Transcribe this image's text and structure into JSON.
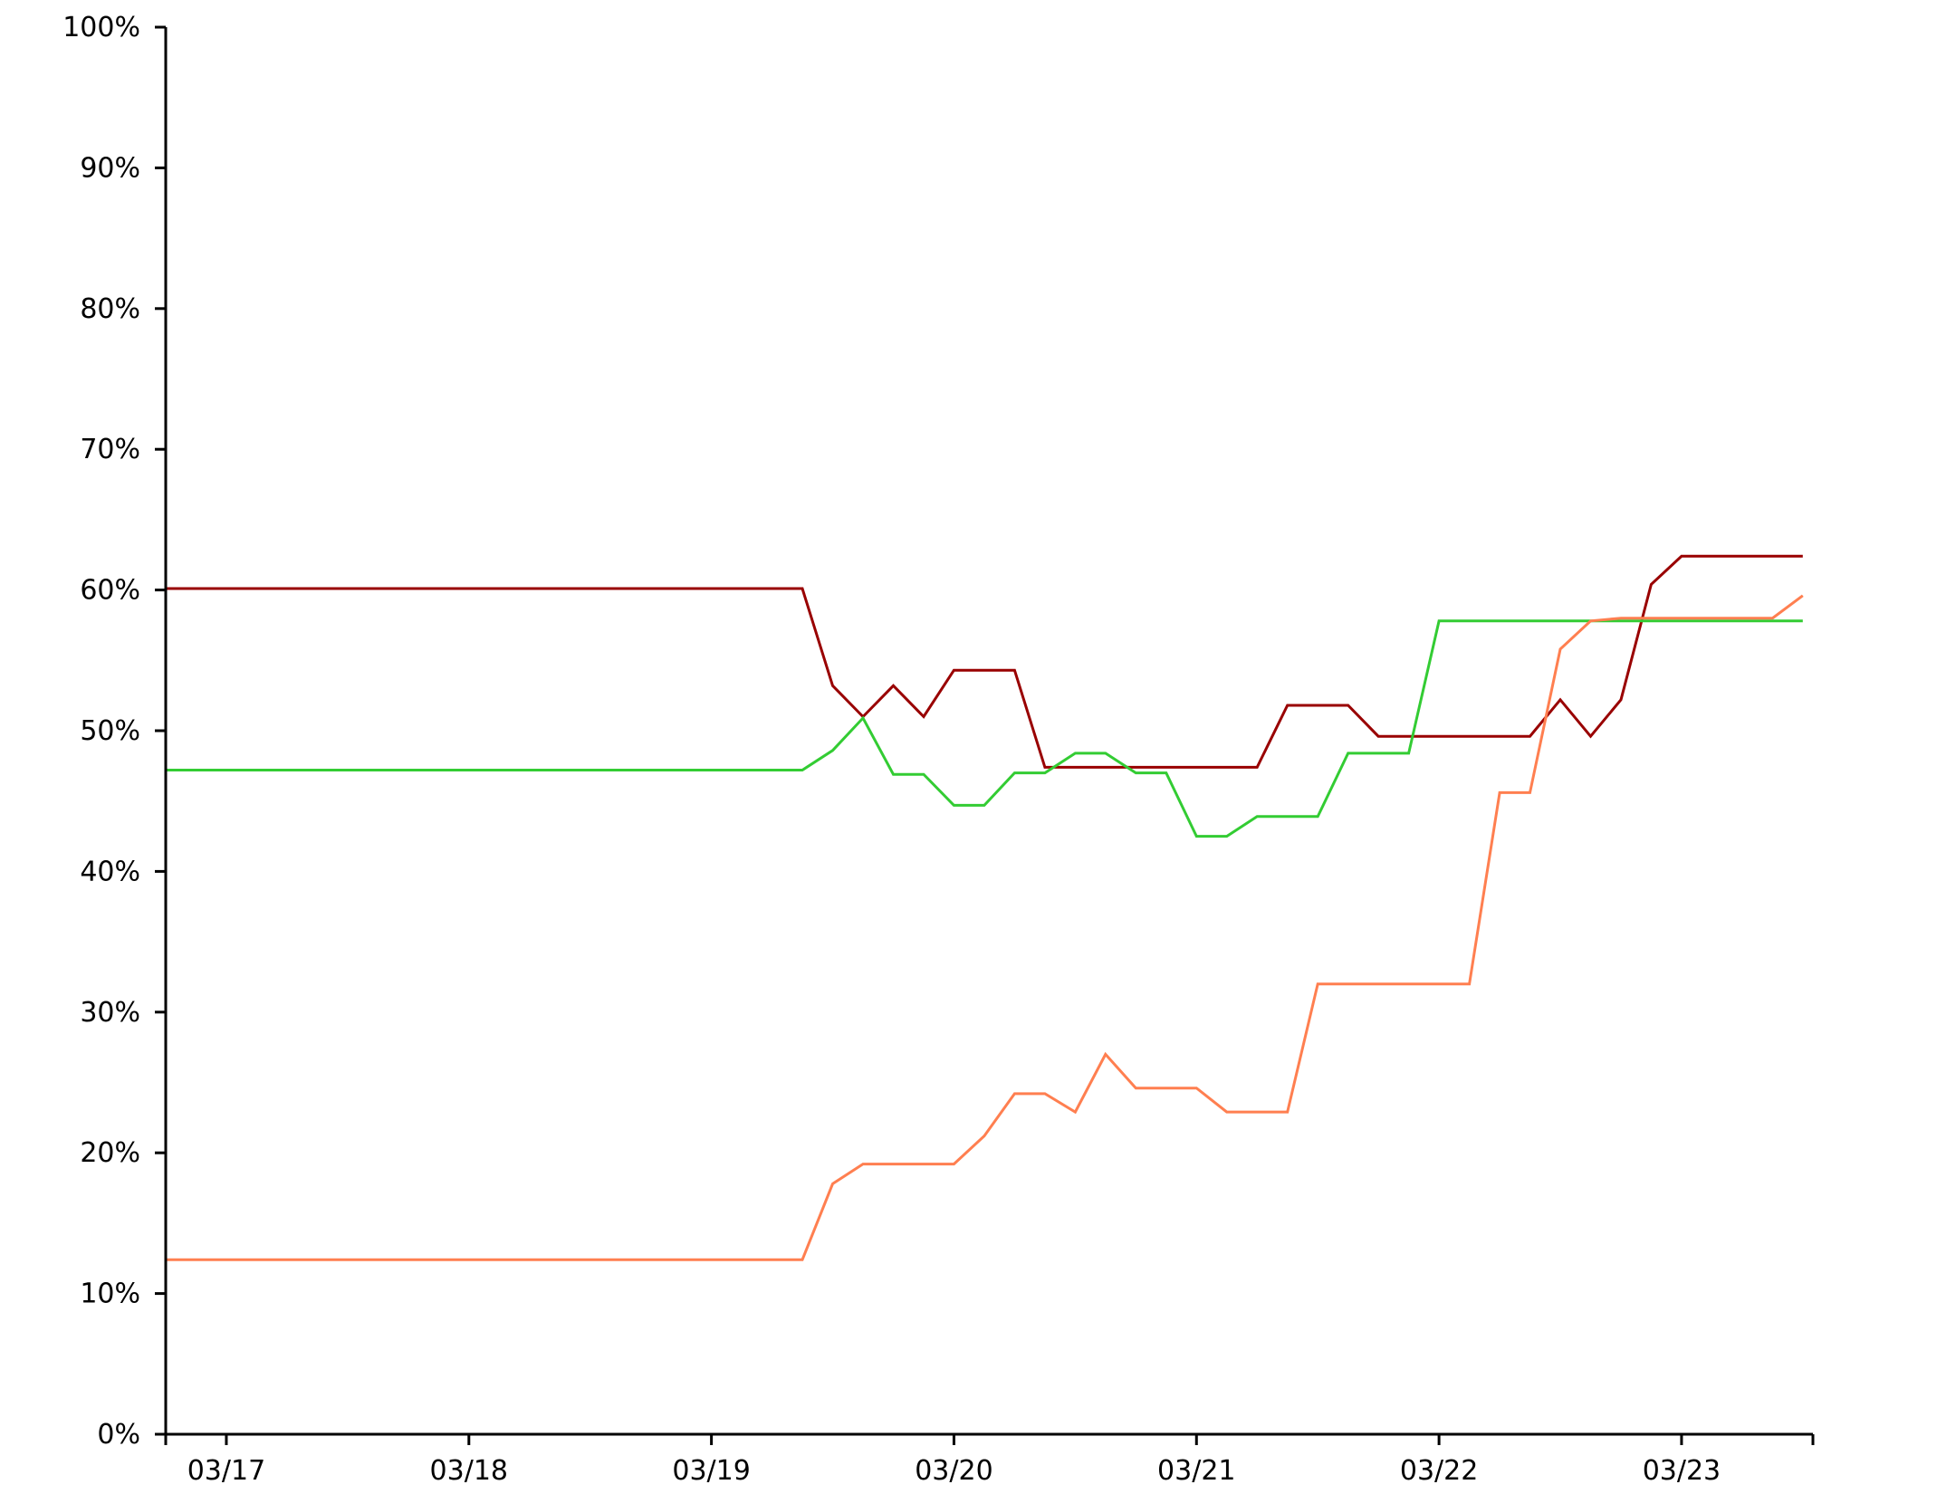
{
  "chart_data": {
    "type": "line",
    "title": "",
    "xlabel": "",
    "ylabel": "",
    "x_axis": {
      "type": "date",
      "domain": [
        "2020-03-16T18:00",
        "2020-03-23T13:00"
      ],
      "ticks": [
        {
          "date": "2020-03-17T00:00",
          "label": "03/17"
        },
        {
          "date": "2020-03-18T00:00",
          "label": "03/18"
        },
        {
          "date": "2020-03-19T00:00",
          "label": "03/19"
        },
        {
          "date": "2020-03-20T00:00",
          "label": "03/20"
        },
        {
          "date": "2020-03-21T00:00",
          "label": "03/21"
        },
        {
          "date": "2020-03-22T00:00",
          "label": "03/22"
        },
        {
          "date": "2020-03-23T00:00",
          "label": "03/23"
        }
      ]
    },
    "y_axis": {
      "ylim": [
        0,
        100
      ],
      "ticks": [
        0,
        10,
        20,
        30,
        40,
        50,
        60,
        70,
        80,
        90,
        100
      ],
      "tick_labels": [
        "0%",
        "10%",
        "20%",
        "30%",
        "40%",
        "50%",
        "60%",
        "70%",
        "80%",
        "90%",
        "100%"
      ]
    },
    "grid": false,
    "legend": "none",
    "series": [
      {
        "color": "#990000",
        "points": [
          [
            "2020-03-16T18:00",
            60.1
          ],
          [
            "2020-03-19T09:00",
            60.1
          ],
          [
            "2020-03-19T12:00",
            53.2
          ],
          [
            "2020-03-19T15:00",
            51.0
          ],
          [
            "2020-03-19T18:00",
            53.2
          ],
          [
            "2020-03-19T21:00",
            51.0
          ],
          [
            "2020-03-20T00:00",
            54.3
          ],
          [
            "2020-03-20T06:00",
            54.3
          ],
          [
            "2020-03-20T09:00",
            47.4
          ],
          [
            "2020-03-21T06:00",
            47.4
          ],
          [
            "2020-03-21T09:00",
            51.8
          ],
          [
            "2020-03-21T15:00",
            51.8
          ],
          [
            "2020-03-21T18:00",
            49.6
          ],
          [
            "2020-03-22T09:00",
            49.6
          ],
          [
            "2020-03-22T12:00",
            52.2
          ],
          [
            "2020-03-22T15:00",
            49.6
          ],
          [
            "2020-03-22T18:00",
            52.2
          ],
          [
            "2020-03-22T21:00",
            60.4
          ],
          [
            "2020-03-23T00:00",
            62.4
          ],
          [
            "2020-03-23T12:00",
            62.4
          ]
        ]
      },
      {
        "color": "#33cc33",
        "points": [
          [
            "2020-03-16T18:00",
            47.2
          ],
          [
            "2020-03-19T09:00",
            47.2
          ],
          [
            "2020-03-19T12:00",
            48.6
          ],
          [
            "2020-03-19T15:00",
            50.9
          ],
          [
            "2020-03-19T18:00",
            46.9
          ],
          [
            "2020-03-19T21:00",
            46.9
          ],
          [
            "2020-03-20T00:00",
            44.7
          ],
          [
            "2020-03-20T03:00",
            44.7
          ],
          [
            "2020-03-20T06:00",
            47.0
          ],
          [
            "2020-03-20T09:00",
            47.0
          ],
          [
            "2020-03-20T12:00",
            48.4
          ],
          [
            "2020-03-20T15:00",
            48.4
          ],
          [
            "2020-03-20T18:00",
            47.0
          ],
          [
            "2020-03-20T21:00",
            47.0
          ],
          [
            "2020-03-21T00:00",
            42.5
          ],
          [
            "2020-03-21T03:00",
            42.5
          ],
          [
            "2020-03-21T06:00",
            43.9
          ],
          [
            "2020-03-21T12:00",
            43.9
          ],
          [
            "2020-03-21T15:00",
            48.4
          ],
          [
            "2020-03-21T21:00",
            48.4
          ],
          [
            "2020-03-22T00:00",
            57.8
          ],
          [
            "2020-03-23T12:00",
            57.8
          ]
        ]
      },
      {
        "color": "#ff7f50",
        "points": [
          [
            "2020-03-16T18:00",
            12.4
          ],
          [
            "2020-03-19T09:00",
            12.4
          ],
          [
            "2020-03-19T12:00",
            17.8
          ],
          [
            "2020-03-19T15:00",
            19.2
          ],
          [
            "2020-03-20T00:00",
            19.2
          ],
          [
            "2020-03-20T03:00",
            21.2
          ],
          [
            "2020-03-20T06:00",
            24.2
          ],
          [
            "2020-03-20T09:00",
            24.2
          ],
          [
            "2020-03-20T12:00",
            22.9
          ],
          [
            "2020-03-20T15:00",
            27.0
          ],
          [
            "2020-03-20T18:00",
            24.6
          ],
          [
            "2020-03-21T00:00",
            24.6
          ],
          [
            "2020-03-21T03:00",
            22.9
          ],
          [
            "2020-03-21T09:00",
            22.9
          ],
          [
            "2020-03-21T12:00",
            32.0
          ],
          [
            "2020-03-22T03:00",
            32.0
          ],
          [
            "2020-03-22T06:00",
            45.6
          ],
          [
            "2020-03-22T09:00",
            45.6
          ],
          [
            "2020-03-22T12:00",
            55.8
          ],
          [
            "2020-03-22T15:00",
            57.8
          ],
          [
            "2020-03-22T18:00",
            58.0
          ],
          [
            "2020-03-23T09:00",
            58.0
          ],
          [
            "2020-03-23T12:00",
            59.6
          ]
        ]
      }
    ]
  }
}
